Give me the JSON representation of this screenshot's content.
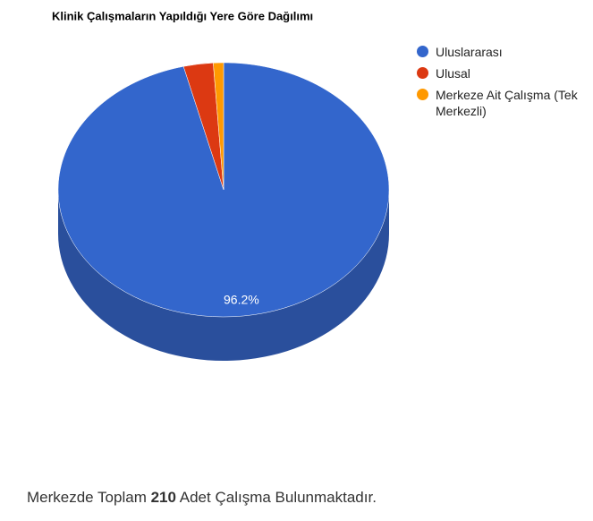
{
  "chart_data": {
    "type": "pie3d",
    "title": "Klinik Çalışmaların Yapıldığı Yere Göre Dağılımı",
    "categories": [
      "Uluslararası",
      "Ulusal",
      "Merkeze Ait Çalışma (Tek Merkezli)"
    ],
    "values": [
      96.2,
      2.9,
      1.0
    ],
    "value_labels": [
      "96.2%",
      null,
      null
    ],
    "colors": [
      "#3366cc",
      "#dc3912",
      "#ff9900"
    ],
    "side_colors": [
      "#2a4f9c",
      "#a82b0e",
      "#c27400"
    ]
  },
  "footer": {
    "prefix": "Merkezde Toplam",
    "number": "210",
    "suffix": "Adet Çalışma Bulunmaktadır."
  }
}
